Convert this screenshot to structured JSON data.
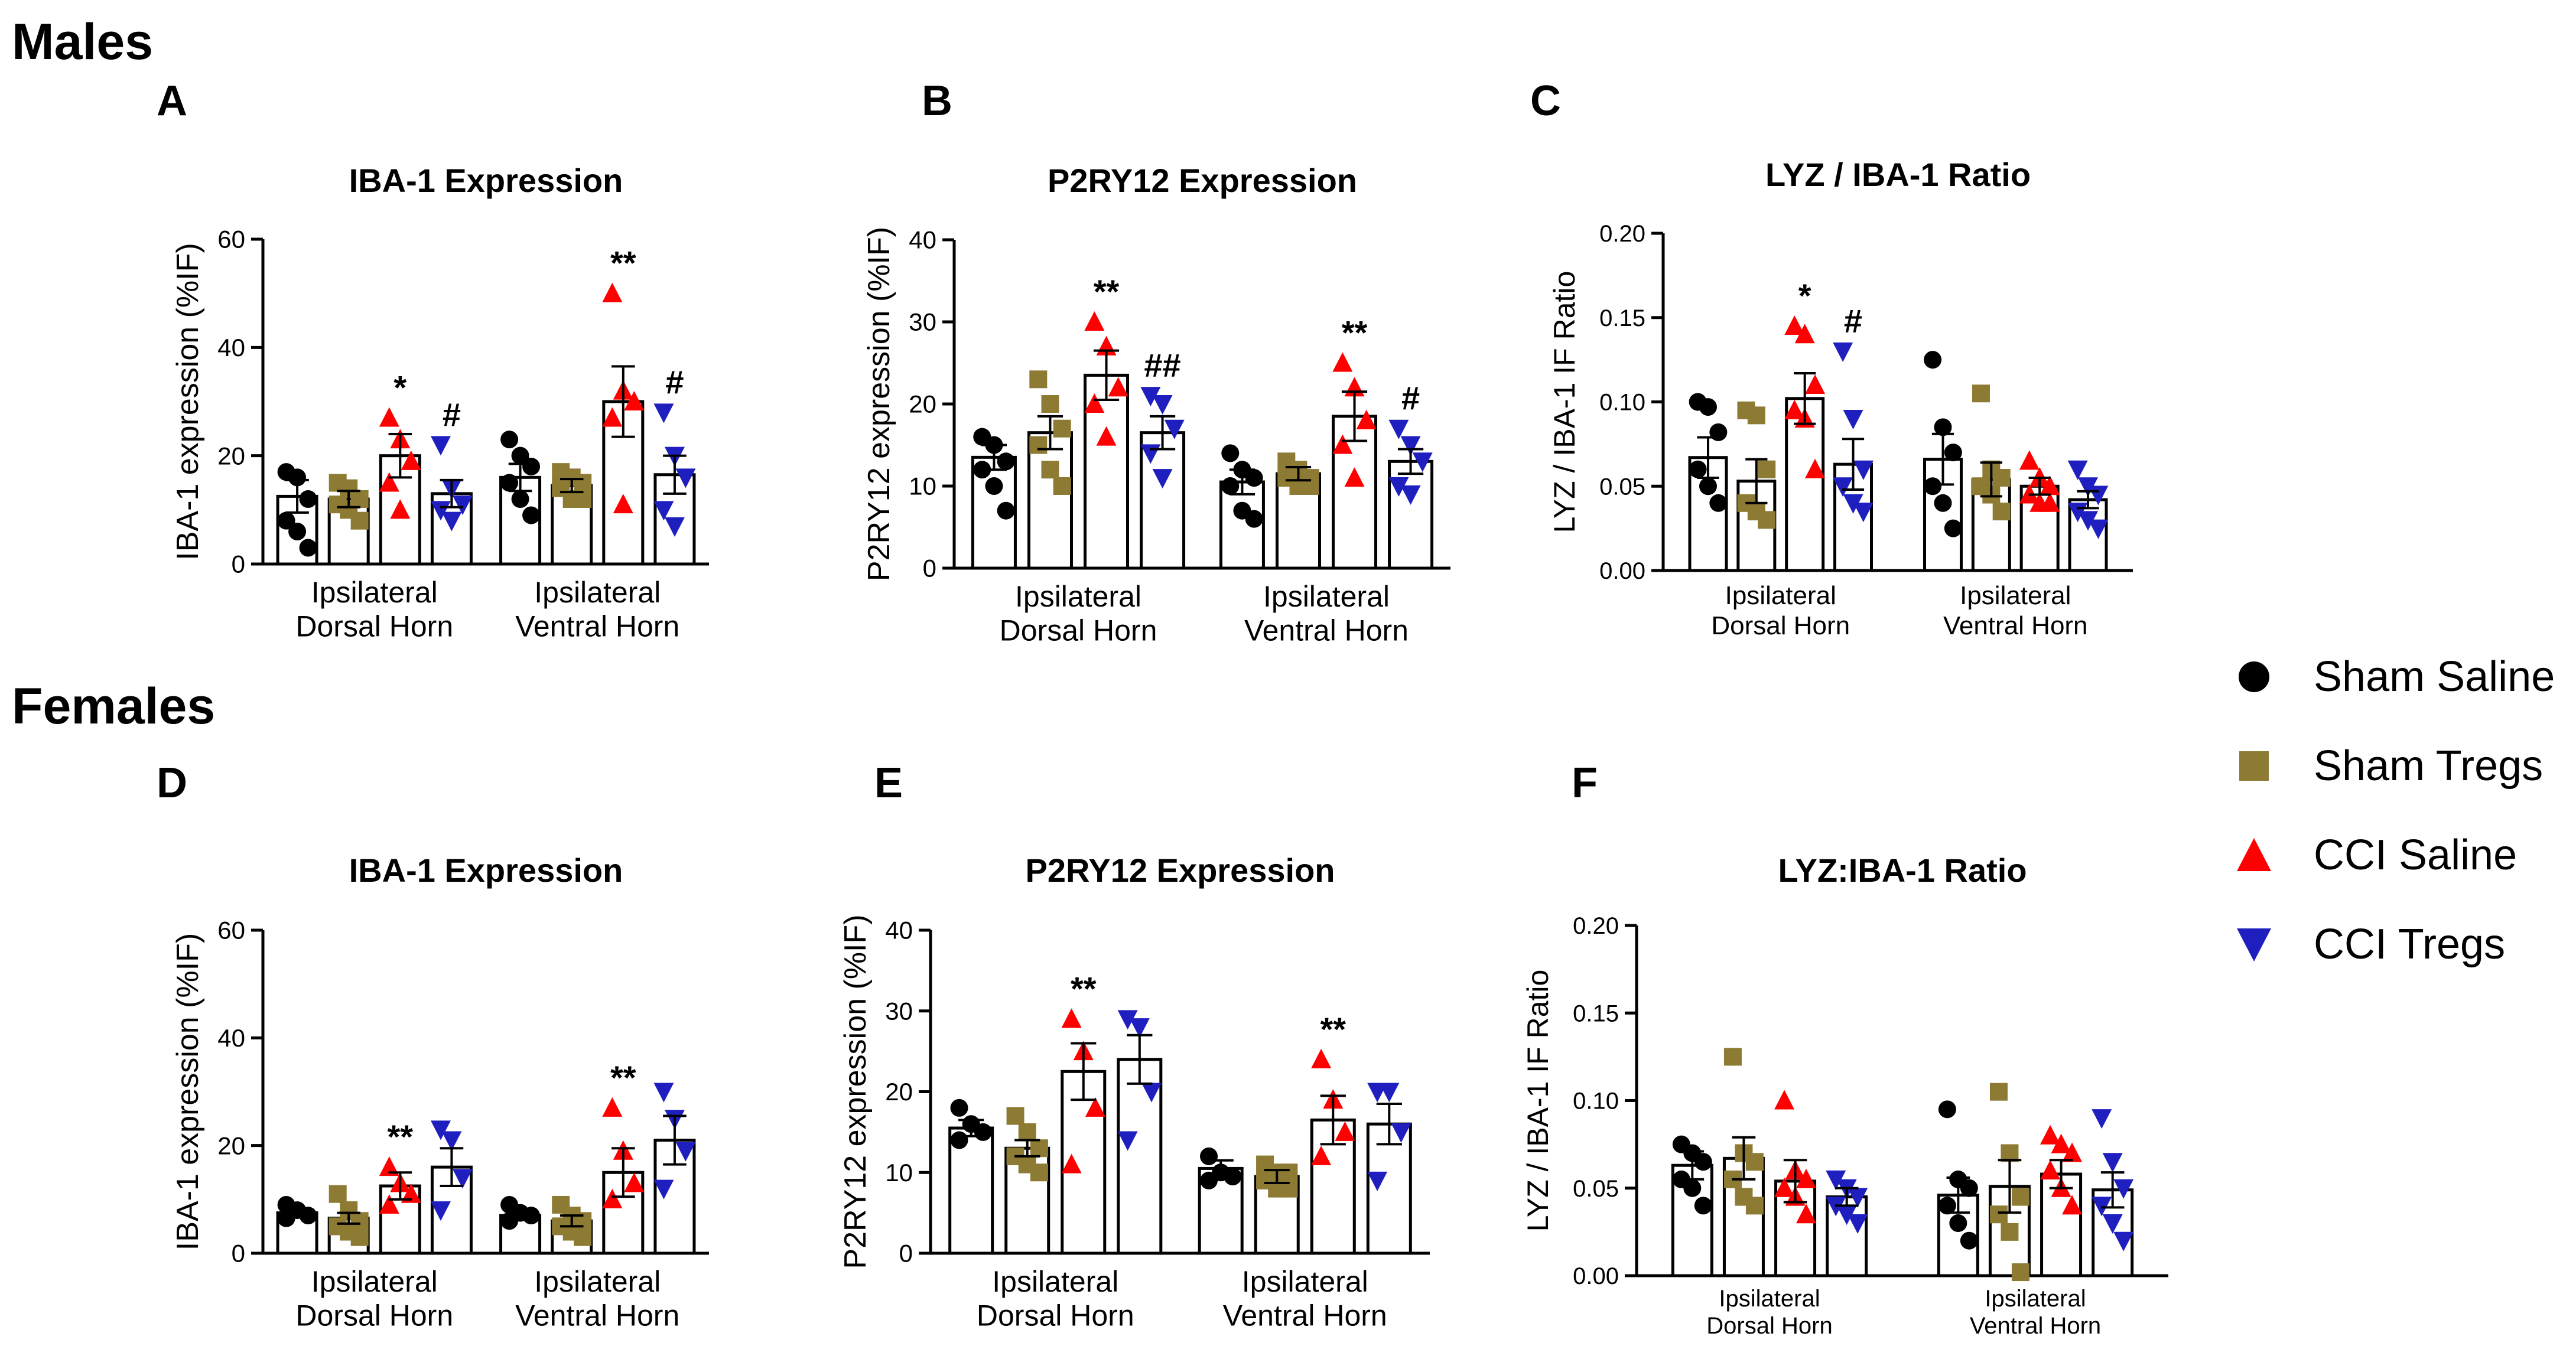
{
  "colors": {
    "sham_saline": "#000000",
    "sham_tregs": "#8d7b33",
    "cci_saline": "#ff0000",
    "cci_tregs": "#1f1fbf"
  },
  "sections": {
    "males": "Males",
    "females": "Females"
  },
  "legend": [
    {
      "label": "Sham Saline",
      "shape": "circle",
      "color": "#000000"
    },
    {
      "label": "Sham Tregs",
      "shape": "square",
      "color": "#8d7b33"
    },
    {
      "label": "CCI Saline",
      "shape": "triangle-up",
      "color": "#ff0000"
    },
    {
      "label": "CCI Tregs",
      "shape": "triangle-down",
      "color": "#1f1fbf"
    }
  ],
  "chart_data": [
    {
      "id": "A",
      "type": "bar",
      "title": "IBA-1 Expression",
      "ylabel": "IBA-1 expression (%IF)",
      "ylim": [
        0,
        60
      ],
      "yticks": [
        "0",
        "20",
        "40",
        "60"
      ],
      "categories": [
        "Ipsilateral\nDorsal Horn",
        "Ipsilateral\nVentral Horn"
      ],
      "series": [
        {
          "name": "Sham Saline",
          "values": [
            12.5,
            16
          ],
          "err": [
            3,
            2.5
          ],
          "points": [
            [
              17,
              16,
              12,
              8,
              6,
              3
            ],
            [
              23,
              20,
              18,
              15,
              12,
              9
            ]
          ]
        },
        {
          "name": "Sham Tregs",
          "values": [
            12,
            14.5
          ],
          "err": [
            1.5,
            1.2
          ],
          "points": [
            [
              15,
              14,
              12,
              11,
              10,
              8
            ],
            [
              17,
              16,
              15,
              14,
              12,
              12
            ]
          ]
        },
        {
          "name": "CCI Saline",
          "values": [
            20,
            30
          ],
          "err": [
            4,
            6.5
          ],
          "points": [
            [
              27,
              23,
              19,
              15,
              10
            ],
            [
              50,
              32,
              30,
              27,
              11
            ]
          ]
        },
        {
          "name": "CCI Tregs",
          "values": [
            13,
            16.5
          ],
          "err": [
            2.5,
            3.5
          ],
          "points": [
            [
              22,
              14,
              11,
              10,
              8
            ],
            [
              28,
              20,
              16,
              10,
              7
            ]
          ]
        }
      ],
      "annotations": [
        {
          "text": "*",
          "cat": 0,
          "series": 2
        },
        {
          "text": "#",
          "cat": 0,
          "series": 3
        },
        {
          "text": "**",
          "cat": 1,
          "series": 2
        },
        {
          "text": "#",
          "cat": 1,
          "series": 3
        }
      ]
    },
    {
      "id": "B",
      "type": "bar",
      "title": "P2RY12 Expression",
      "ylabel": "P2RY12 expression (%IF)",
      "ylim": [
        0,
        40
      ],
      "yticks": [
        "0",
        "10",
        "20",
        "30",
        "40"
      ],
      "categories": [
        "Ipsilateral\nDorsal Horn",
        "Ipsilateral\nVentral Horn"
      ],
      "series": [
        {
          "name": "Sham Saline",
          "values": [
            13.5,
            10.5
          ],
          "err": [
            1.5,
            1.5
          ],
          "points": [
            [
              16,
              15,
              13,
              12,
              10,
              7
            ],
            [
              14,
              12,
              11,
              10,
              7,
              6
            ]
          ]
        },
        {
          "name": "Sham Tregs",
          "values": [
            16.5,
            11.5
          ],
          "err": [
            2,
            0.8
          ],
          "points": [
            [
              23,
              20,
              17,
              15,
              12,
              10
            ],
            [
              13,
              12,
              11,
              11,
              10,
              10
            ]
          ]
        },
        {
          "name": "CCI Saline",
          "values": [
            23.5,
            18.5
          ],
          "err": [
            3,
            3
          ],
          "points": [
            [
              30,
              27,
              22,
              20,
              16
            ],
            [
              25,
              22,
              18,
              15,
              11
            ]
          ]
        },
        {
          "name": "CCI Tregs",
          "values": [
            16.5,
            13
          ],
          "err": [
            2,
            1.5
          ],
          "points": [
            [
              21,
              20,
              17,
              14,
              11
            ],
            [
              17,
              15,
              13,
              10,
              9
            ]
          ]
        }
      ],
      "annotations": [
        {
          "text": "**",
          "cat": 0,
          "series": 2
        },
        {
          "text": "##",
          "cat": 0,
          "series": 3
        },
        {
          "text": "**",
          "cat": 1,
          "series": 2
        },
        {
          "text": "#",
          "cat": 1,
          "series": 3
        }
      ]
    },
    {
      "id": "C",
      "type": "bar",
      "title": "LYZ / IBA-1 Ratio",
      "ylabel": "LYZ / IBA-1 IF Ratio",
      "ylim": [
        0,
        0.2
      ],
      "yticks": [
        "0.00",
        "0.05",
        "0.10",
        "0.15",
        "0.20"
      ],
      "categories": [
        "Ipsilateral\nDorsal Horn",
        "Ipsilateral\nVentral Horn"
      ],
      "series": [
        {
          "name": "Sham Saline",
          "values": [
            0.067,
            0.066
          ],
          "err": [
            0.012,
            0.015
          ],
          "points": [
            [
              0.1,
              0.097,
              0.082,
              0.06,
              0.05,
              0.04
            ],
            [
              0.125,
              0.085,
              0.07,
              0.05,
              0.04,
              0.025
            ]
          ]
        },
        {
          "name": "Sham Tregs",
          "values": [
            0.053,
            0.054
          ],
          "err": [
            0.013,
            0.01
          ],
          "points": [
            [
              0.095,
              0.092,
              0.06,
              0.04,
              0.035,
              0.03
            ],
            [
              0.105,
              0.06,
              0.055,
              0.05,
              0.045,
              0.035
            ]
          ]
        },
        {
          "name": "CCI Saline",
          "values": [
            0.102,
            0.05
          ],
          "err": [
            0.015,
            0.005
          ],
          "points": [
            [
              0.145,
              0.14,
              0.11,
              0.095,
              0.09,
              0.06
            ],
            [
              0.065,
              0.055,
              0.05,
              0.045,
              0.04,
              0.04
            ]
          ]
        },
        {
          "name": "CCI Tregs",
          "values": [
            0.063,
            0.042
          ],
          "err": [
            0.015,
            0.005
          ],
          "points": [
            [
              0.13,
              0.09,
              0.06,
              0.05,
              0.04,
              0.035
            ],
            [
              0.06,
              0.05,
              0.045,
              0.035,
              0.03,
              0.025
            ]
          ]
        }
      ],
      "annotations": [
        {
          "text": "*",
          "cat": 0,
          "series": 2
        },
        {
          "text": "#",
          "cat": 0,
          "series": 3
        }
      ]
    },
    {
      "id": "D",
      "type": "bar",
      "title": "IBA-1 Expression",
      "ylabel": "IBA-1 expression (%IF)",
      "ylim": [
        0,
        60
      ],
      "yticks": [
        "0",
        "20",
        "40",
        "60"
      ],
      "categories": [
        "Ipsilateral\nDorsal Horn",
        "Ipsilateral\nVentral Horn"
      ],
      "series": [
        {
          "name": "Sham Saline",
          "values": [
            7.5,
            7
          ],
          "err": [
            0.8,
            0.8
          ],
          "points": [
            [
              9,
              8,
              7,
              6.5
            ],
            [
              9,
              7.5,
              7,
              6
            ]
          ]
        },
        {
          "name": "Sham Tregs",
          "values": [
            6.5,
            6
          ],
          "err": [
            1,
            1
          ],
          "points": [
            [
              11,
              8,
              6,
              5,
              4,
              3
            ],
            [
              9,
              7,
              6,
              5,
              4,
              3
            ]
          ]
        },
        {
          "name": "CCI Saline",
          "values": [
            12.5,
            15
          ],
          "err": [
            2.5,
            4.5
          ],
          "points": [
            [
              16,
              13,
              11,
              9
            ],
            [
              27,
              19,
              13,
              10
            ]
          ]
        },
        {
          "name": "CCI Tregs",
          "values": [
            16,
            21
          ],
          "err": [
            3.5,
            4.5
          ],
          "points": [
            [
              23,
              21,
              14,
              8
            ],
            [
              30,
              25,
              19,
              12
            ]
          ]
        }
      ],
      "annotations": [
        {
          "text": "**",
          "cat": 0,
          "series": 2
        },
        {
          "text": "**",
          "cat": 1,
          "series": 2
        }
      ]
    },
    {
      "id": "E",
      "type": "bar",
      "title": "P2RY12 Expression",
      "ylabel": "P2RY12 expression (%IF)",
      "ylim": [
        0,
        40
      ],
      "yticks": [
        "0",
        "10",
        "20",
        "30",
        "40"
      ],
      "categories": [
        "Ipsilateral\nDorsal Horn",
        "Ipsilateral\nVentral Horn"
      ],
      "series": [
        {
          "name": "Sham Saline",
          "values": [
            15.5,
            10.5
          ],
          "err": [
            1,
            1
          ],
          "points": [
            [
              18,
              16,
              15,
              14
            ],
            [
              12,
              10,
              9.5,
              9
            ]
          ]
        },
        {
          "name": "Sham Tregs",
          "values": [
            13,
            9.5
          ],
          "err": [
            1,
            0.8
          ],
          "points": [
            [
              17,
              15,
              13,
              12,
              11,
              10
            ],
            [
              11,
              10,
              10,
              9,
              8,
              8
            ]
          ]
        },
        {
          "name": "CCI Saline",
          "values": [
            22.5,
            16.5
          ],
          "err": [
            3.5,
            3
          ],
          "points": [
            [
              29,
              25,
              18,
              11
            ],
            [
              24,
              19,
              15,
              12
            ]
          ]
        },
        {
          "name": "CCI Tregs",
          "values": [
            24,
            16
          ],
          "err": [
            3,
            2.5
          ],
          "points": [
            [
              29,
              28,
              20,
              14
            ],
            [
              20,
              20,
              15,
              9
            ]
          ]
        }
      ],
      "annotations": [
        {
          "text": "**",
          "cat": 0,
          "series": 2
        },
        {
          "text": "**",
          "cat": 1,
          "series": 2
        }
      ]
    },
    {
      "id": "F",
      "type": "bar",
      "title": "LYZ:IBA-1 Ratio",
      "ylabel": "LYZ / IBA-1 IF Ratio",
      "ylim": [
        0,
        0.2
      ],
      "yticks": [
        "0.00",
        "0.05",
        "0.10",
        "0.15",
        "0.20"
      ],
      "categories": [
        "Ipsilateral\nDorsal Horn",
        "Ipsilateral\nVentral Horn"
      ],
      "series": [
        {
          "name": "Sham Saline",
          "values": [
            0.063,
            0.046
          ],
          "err": [
            0.008,
            0.01
          ],
          "points": [
            [
              0.075,
              0.07,
              0.065,
              0.055,
              0.05,
              0.04
            ],
            [
              0.095,
              0.055,
              0.05,
              0.04,
              0.03,
              0.02
            ]
          ]
        },
        {
          "name": "Sham Tregs",
          "values": [
            0.067,
            0.051
          ],
          "err": [
            0.012,
            0.015
          ],
          "points": [
            [
              0.125,
              0.07,
              0.065,
              0.055,
              0.045,
              0.04
            ],
            [
              0.105,
              0.07,
              0.045,
              0.035,
              0.025,
              0.002
            ]
          ]
        },
        {
          "name": "CCI Saline",
          "values": [
            0.054,
            0.058
          ],
          "err": [
            0.012,
            0.008
          ],
          "points": [
            [
              0.1,
              0.06,
              0.055,
              0.05,
              0.045,
              0.035
            ],
            [
              0.08,
              0.075,
              0.07,
              0.06,
              0.05,
              0.04
            ]
          ]
        },
        {
          "name": "CCI Tregs",
          "values": [
            0.045,
            0.049
          ],
          "err": [
            0.005,
            0.01
          ],
          "points": [
            [
              0.055,
              0.05,
              0.045,
              0.04,
              0.035,
              0.03
            ],
            [
              0.09,
              0.065,
              0.05,
              0.04,
              0.03,
              0.02
            ]
          ]
        }
      ],
      "annotations": []
    }
  ]
}
